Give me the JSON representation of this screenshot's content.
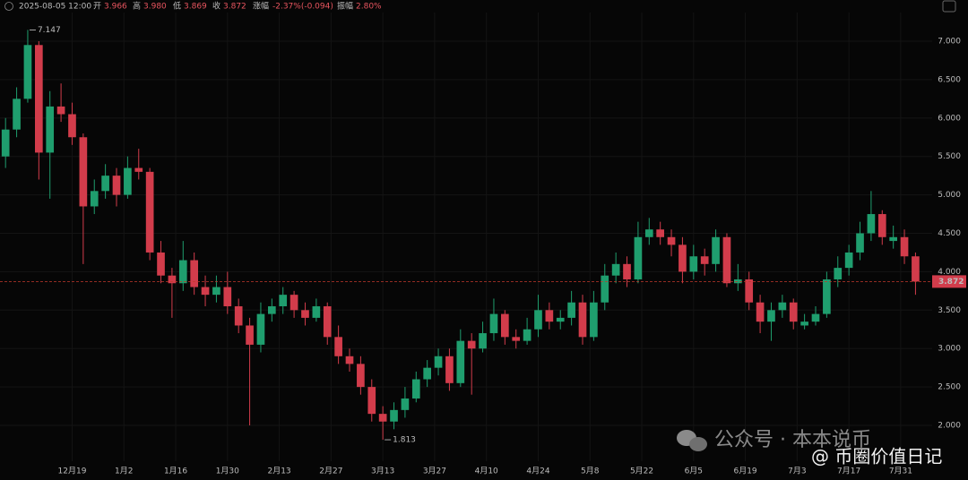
{
  "header": {
    "time": "2025-08-05 12:00",
    "open_label": "开",
    "open": "3.966",
    "high_label": "高",
    "high": "3.980",
    "low_label": "低",
    "low": "3.869",
    "close_label": "收",
    "close": "3.872",
    "change_label": "涨幅",
    "change": "-2.37%(-0.094)",
    "amplitude_label": "振幅",
    "amplitude": "2.80%"
  },
  "watermark": {
    "line1": "公众号 · 本本说币",
    "line2": "@ 币圈价值日记"
  },
  "chart_data": {
    "type": "candlestick",
    "up_color": "#1f9e6e",
    "down_color": "#d23c4b",
    "grid": true,
    "xlim": [
      0,
      252
    ],
    "ylim": [
      1.534,
      7.536
    ],
    "xticks": [
      {
        "value": 19.5,
        "label": "12月19"
      },
      {
        "value": 33.5,
        "label": "1月2"
      },
      {
        "value": 47.5,
        "label": "1月16"
      },
      {
        "value": 61.5,
        "label": "1月30"
      },
      {
        "value": 75.5,
        "label": "2月13"
      },
      {
        "value": 89.5,
        "label": "2月27"
      },
      {
        "value": 103.5,
        "label": "3月13"
      },
      {
        "value": 117.5,
        "label": "3月27"
      },
      {
        "value": 131.5,
        "label": "4月10"
      },
      {
        "value": 145.5,
        "label": "4月24"
      },
      {
        "value": 159.5,
        "label": "5月8"
      },
      {
        "value": 173.5,
        "label": "5月22"
      },
      {
        "value": 187.5,
        "label": "6月5"
      },
      {
        "value": 201.5,
        "label": "6月19"
      },
      {
        "value": 215.5,
        "label": "7月3"
      },
      {
        "value": 229.5,
        "label": "7月17"
      },
      {
        "value": 243.5,
        "label": "7月31"
      }
    ],
    "yticks": [
      {
        "value": 2,
        "label": "2.000"
      },
      {
        "value": 2.5,
        "label": "2.500"
      },
      {
        "value": 3,
        "label": "3.000"
      },
      {
        "value": 3.5,
        "label": "3.500"
      },
      {
        "value": 4,
        "label": "4.000"
      },
      {
        "value": 4.5,
        "label": "4.500"
      },
      {
        "value": 5,
        "label": "5.000"
      },
      {
        "value": 5.5,
        "label": "5.500"
      },
      {
        "value": 6,
        "label": "6.000"
      },
      {
        "value": 6.5,
        "label": "6.500"
      },
      {
        "value": 7,
        "label": "7.000"
      }
    ],
    "x": [
      1.5,
      4.5,
      7.5,
      10.5,
      13.5,
      16.5,
      19.5,
      22.5,
      25.5,
      28.5,
      31.5,
      34.5,
      37.5,
      40.5,
      43.5,
      46.5,
      49.5,
      52.5,
      55.5,
      58.5,
      61.5,
      64.5,
      67.5,
      70.5,
      73.5,
      76.5,
      79.5,
      82.5,
      85.5,
      88.5,
      91.5,
      94.5,
      97.5,
      100.5,
      103.5,
      106.5,
      109.5,
      112.5,
      115.5,
      118.5,
      121.5,
      124.5,
      127.5,
      130.5,
      133.5,
      136.5,
      139.5,
      142.5,
      145.5,
      148.5,
      151.5,
      154.5,
      157.5,
      160.5,
      163.5,
      166.5,
      169.5,
      172.5,
      175.5,
      178.5,
      181.5,
      184.5,
      187.5,
      190.5,
      193.5,
      196.5,
      199.5,
      202.5,
      205.5,
      208.5,
      211.5,
      214.5,
      217.5,
      220.5,
      223.5,
      226.5,
      229.5,
      232.5,
      235.5,
      238.5,
      241.5,
      244.5,
      247.5
    ],
    "open": [
      5.5,
      5.85,
      6.25,
      6.95,
      5.55,
      6.15,
      6.05,
      5.75,
      4.85,
      5.05,
      5.25,
      5.0,
      5.35,
      5.3,
      4.25,
      3.95,
      3.85,
      4.15,
      3.8,
      3.7,
      3.8,
      3.55,
      3.3,
      3.05,
      3.45,
      3.55,
      3.7,
      3.5,
      3.4,
      3.55,
      3.15,
      2.9,
      2.8,
      2.5,
      2.15,
      2.05,
      2.2,
      2.35,
      2.6,
      2.75,
      2.9,
      2.55,
      3.1,
      3.0,
      3.2,
      3.45,
      3.15,
      3.1,
      3.25,
      3.5,
      3.35,
      3.4,
      3.6,
      3.15,
      3.6,
      3.95,
      4.1,
      3.9,
      4.45,
      4.55,
      4.45,
      4.35,
      4.0,
      4.2,
      4.1,
      4.45,
      3.85,
      3.9,
      3.6,
      3.35,
      3.5,
      3.6,
      3.3,
      3.35,
      3.45,
      3.9,
      4.05,
      4.25,
      4.5,
      4.75,
      4.4,
      4.45,
      4.2
    ],
    "high": [
      6.0,
      6.4,
      7.147,
      7.0,
      6.35,
      6.45,
      6.2,
      5.8,
      5.2,
      5.4,
      5.35,
      5.5,
      5.6,
      5.35,
      4.4,
      4.05,
      4.4,
      4.25,
      3.95,
      3.95,
      4.0,
      3.65,
      3.4,
      3.6,
      3.65,
      3.8,
      3.75,
      3.6,
      3.65,
      3.6,
      3.3,
      3.0,
      2.9,
      2.6,
      2.25,
      2.3,
      2.5,
      2.7,
      2.85,
      3.0,
      3.0,
      3.25,
      3.2,
      3.35,
      3.65,
      3.5,
      3.25,
      3.4,
      3.7,
      3.6,
      3.5,
      3.75,
      3.7,
      3.75,
      4.1,
      4.25,
      4.2,
      4.65,
      4.7,
      4.65,
      4.55,
      4.45,
      4.35,
      4.3,
      4.55,
      4.5,
      4.1,
      4.0,
      3.7,
      3.6,
      3.7,
      3.65,
      3.45,
      3.55,
      4.0,
      4.2,
      4.35,
      4.65,
      5.05,
      4.8,
      4.6,
      4.55,
      4.25
    ],
    "low": [
      5.35,
      5.75,
      6.2,
      5.2,
      4.95,
      5.95,
      5.65,
      4.1,
      4.75,
      4.95,
      4.85,
      4.95,
      5.2,
      4.15,
      3.85,
      3.4,
      3.75,
      3.7,
      3.55,
      3.6,
      3.45,
      3.2,
      2.0,
      2.95,
      3.35,
      3.45,
      3.4,
      3.3,
      3.35,
      3.05,
      2.8,
      2.7,
      2.4,
      2.05,
      1.813,
      1.95,
      2.1,
      2.3,
      2.5,
      2.65,
      2.45,
      2.5,
      2.4,
      2.95,
      3.1,
      3.05,
      3.0,
      3.05,
      3.15,
      3.25,
      3.25,
      3.3,
      3.05,
      3.1,
      3.5,
      3.85,
      3.8,
      3.85,
      4.35,
      4.35,
      4.2,
      3.85,
      3.9,
      3.95,
      4.0,
      3.8,
      3.75,
      3.5,
      3.2,
      3.1,
      3.4,
      3.25,
      3.25,
      3.3,
      3.4,
      3.8,
      3.95,
      4.15,
      4.4,
      4.35,
      4.3,
      4.1,
      3.7
    ],
    "close": [
      5.85,
      6.25,
      6.95,
      5.55,
      6.15,
      6.05,
      5.75,
      4.85,
      5.05,
      5.25,
      5.0,
      5.35,
      5.3,
      4.25,
      3.95,
      3.85,
      4.15,
      3.8,
      3.7,
      3.8,
      3.55,
      3.3,
      3.05,
      3.45,
      3.55,
      3.7,
      3.5,
      3.4,
      3.55,
      3.15,
      2.9,
      2.8,
      2.5,
      2.15,
      2.05,
      2.2,
      2.35,
      2.6,
      2.75,
      2.9,
      2.55,
      3.1,
      3.0,
      3.2,
      3.45,
      3.15,
      3.1,
      3.25,
      3.5,
      3.35,
      3.4,
      3.6,
      3.15,
      3.6,
      3.95,
      4.1,
      3.9,
      4.45,
      4.55,
      4.45,
      4.35,
      4.0,
      4.2,
      4.1,
      4.45,
      3.85,
      3.9,
      3.6,
      3.35,
      3.5,
      3.6,
      3.35,
      3.35,
      3.45,
      3.9,
      4.05,
      4.25,
      4.5,
      4.75,
      4.45,
      4.45,
      4.2,
      3.872
    ]
  }
}
